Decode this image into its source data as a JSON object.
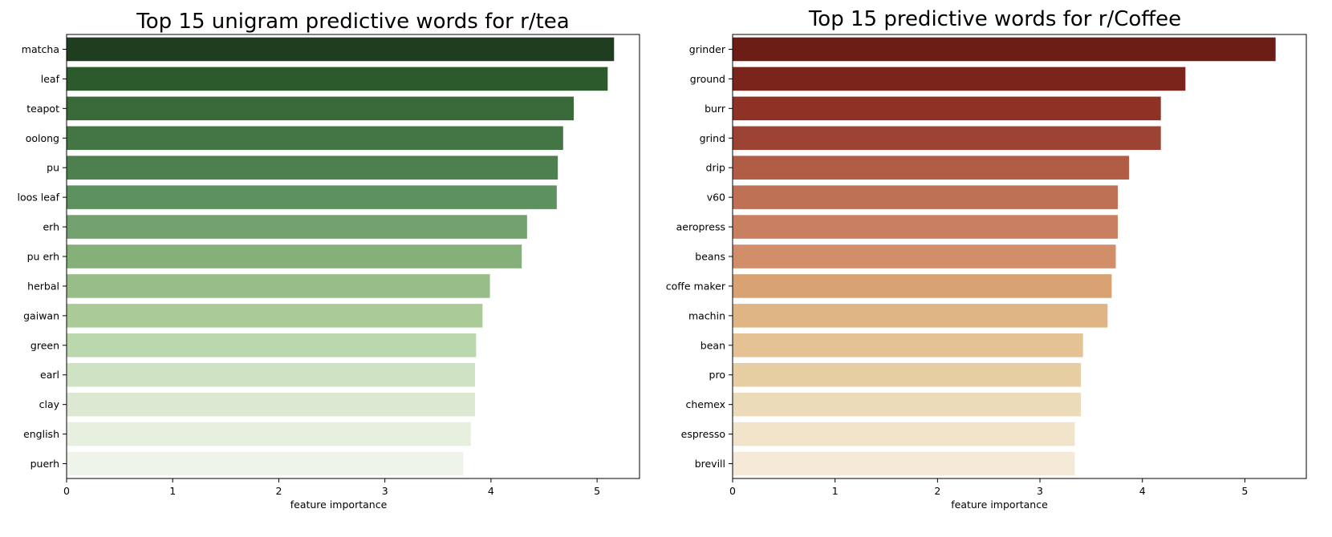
{
  "chart_data": [
    {
      "type": "bar",
      "orientation": "horizontal",
      "title": "Top 15 unigram predictive words for r/tea",
      "xlabel": "feature importance",
      "ylabel": "",
      "categories": [
        "matcha",
        "leaf",
        "teapot",
        "oolong",
        "pu",
        "loos leaf",
        "erh",
        "pu erh",
        "herbal",
        "gaiwan",
        "green",
        "earl",
        "clay",
        "english",
        "puerh"
      ],
      "values": [
        5.16,
        5.1,
        4.78,
        4.68,
        4.63,
        4.62,
        4.34,
        4.29,
        3.99,
        3.92,
        3.86,
        3.85,
        3.85,
        3.81,
        3.74
      ],
      "xlim": [
        0,
        5.4
      ],
      "xticks": [
        0,
        1,
        2,
        3,
        4,
        5
      ],
      "colors": [
        "#1f3d1f",
        "#2d5a2d",
        "#3a6a3a",
        "#447544",
        "#4e7f4e",
        "#5e9160",
        "#73a06f",
        "#86b07a",
        "#99bd88",
        "#aacb98",
        "#bbd7ae",
        "#cfe2c3",
        "#dce8d2",
        "#e7efdf",
        "#eef4ea"
      ]
    },
    {
      "type": "bar",
      "orientation": "horizontal",
      "title": "Top 15 predictive words for r/Coffee",
      "xlabel": "feature importance",
      "ylabel": "",
      "categories": [
        "grinder",
        "ground",
        "burr",
        "grind",
        "drip",
        "v60",
        "aeropress",
        "beans",
        "coffe maker",
        "machin",
        "bean",
        "pro",
        "chemex",
        "espresso",
        "brevill"
      ],
      "values": [
        5.3,
        4.42,
        4.18,
        4.18,
        3.87,
        3.76,
        3.76,
        3.74,
        3.7,
        3.66,
        3.42,
        3.4,
        3.4,
        3.34,
        3.34
      ],
      "xlim": [
        0,
        5.6
      ],
      "xticks": [
        0,
        1,
        2,
        3,
        4,
        5
      ],
      "colors": [
        "#6b1d16",
        "#7b241b",
        "#8e3225",
        "#9d4333",
        "#b15c45",
        "#bf7156",
        "#c98060",
        "#d18e68",
        "#d8a273",
        "#dfb585",
        "#e4c293",
        "#e7cea2",
        "#ecdbb8",
        "#f1e4cb",
        "#f5ead7"
      ]
    }
  ]
}
